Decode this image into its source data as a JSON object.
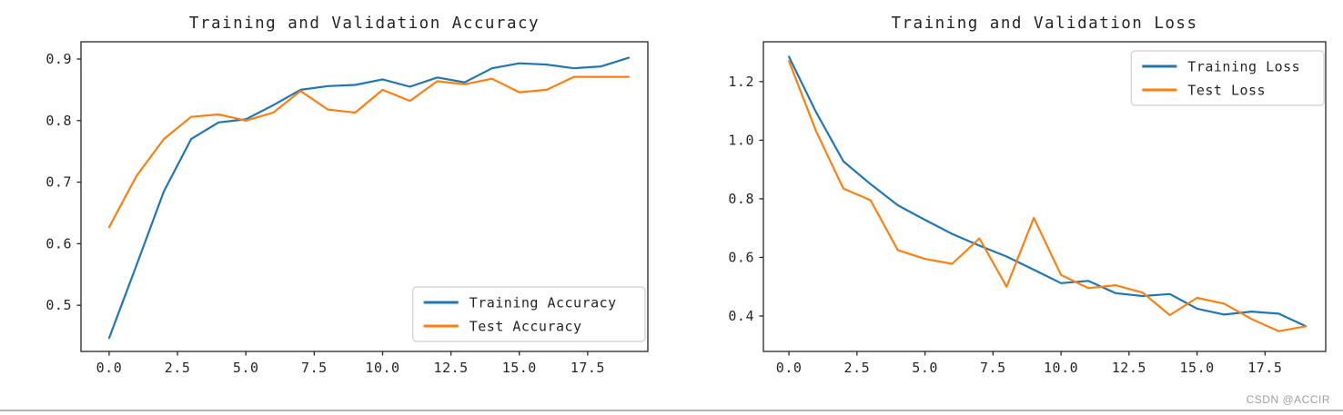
{
  "page": {
    "watermark": "CSDN @ACCIR"
  },
  "chart_data": [
    {
      "type": "line",
      "title": "Training and Validation Accuracy",
      "xlabel": "",
      "ylabel": "",
      "grid": false,
      "x": [
        0,
        1,
        2,
        3,
        4,
        5,
        6,
        7,
        8,
        9,
        10,
        11,
        12,
        13,
        14,
        15,
        16,
        17,
        18,
        19
      ],
      "series": [
        {
          "name": "Training Accuracy",
          "color": "#1f77b4",
          "values": [
            0.447,
            0.565,
            0.685,
            0.77,
            0.797,
            0.802,
            0.825,
            0.85,
            0.856,
            0.858,
            0.867,
            0.855,
            0.87,
            0.862,
            0.885,
            0.893,
            0.891,
            0.885,
            0.888,
            0.902
          ]
        },
        {
          "name": "Test Accuracy",
          "color": "#ff7f0e",
          "values": [
            0.627,
            0.71,
            0.77,
            0.806,
            0.81,
            0.8,
            0.813,
            0.848,
            0.818,
            0.813,
            0.85,
            0.832,
            0.864,
            0.859,
            0.868,
            0.846,
            0.85,
            0.871,
            0.871,
            0.871
          ]
        }
      ],
      "xlim": [
        -1.03,
        19.7
      ],
      "ylim": [
        0.425,
        0.928
      ],
      "xtick_values": [
        0,
        2.5,
        5,
        7.5,
        10,
        12.5,
        15,
        17.5
      ],
      "xtick_labels": [
        "0.0",
        "2.5",
        "5.0",
        "7.5",
        "10.0",
        "12.5",
        "15.0",
        "17.5"
      ],
      "ytick_values": [
        0.5,
        0.6,
        0.7,
        0.8,
        0.9
      ],
      "ytick_labels": [
        "0.5",
        "0.6",
        "0.7",
        "0.8",
        "0.9"
      ],
      "legend": {
        "position": "lower right",
        "entries": [
          "Training Accuracy",
          "Test Accuracy"
        ]
      }
    },
    {
      "type": "line",
      "title": "Training and Validation Loss",
      "xlabel": "",
      "ylabel": "",
      "grid": false,
      "x": [
        0,
        1,
        2,
        3,
        4,
        5,
        6,
        7,
        8,
        9,
        10,
        11,
        12,
        13,
        14,
        15,
        16,
        17,
        18,
        19
      ],
      "series": [
        {
          "name": "Training Loss",
          "color": "#1f77b4",
          "values": [
            1.285,
            1.095,
            0.928,
            0.85,
            0.778,
            0.728,
            0.68,
            0.64,
            0.603,
            0.558,
            0.512,
            0.52,
            0.478,
            0.468,
            0.475,
            0.425,
            0.405,
            0.415,
            0.408,
            0.365
          ]
        },
        {
          "name": "Test Loss",
          "color": "#ff7f0e",
          "values": [
            1.27,
            1.03,
            0.835,
            0.795,
            0.625,
            0.595,
            0.578,
            0.665,
            0.5,
            0.735,
            0.54,
            0.495,
            0.505,
            0.48,
            0.403,
            0.462,
            0.442,
            0.39,
            0.348,
            0.365
          ]
        }
      ],
      "xlim": [
        -0.94,
        19.73
      ],
      "ylim": [
        0.279,
        1.336
      ],
      "xtick_values": [
        0,
        2.5,
        5,
        7.5,
        10,
        12.5,
        15,
        17.5
      ],
      "xtick_labels": [
        "0.0",
        "2.5",
        "5.0",
        "7.5",
        "10.0",
        "12.5",
        "15.0",
        "17.5"
      ],
      "ytick_values": [
        0.4,
        0.6,
        0.8,
        1.0,
        1.2
      ],
      "ytick_labels": [
        "0.4",
        "0.6",
        "0.8",
        "1.0",
        "1.2"
      ],
      "legend": {
        "position": "upper right",
        "entries": [
          "Training Loss",
          "Test Loss"
        ]
      }
    }
  ],
  "style": {
    "line_blue": "#1f77b4",
    "line_orange": "#ff7f0e",
    "frame_color": "#262626",
    "text_color": "#262626",
    "legend_border": "#cfcfcf",
    "watermark_color": "#9e9e9e",
    "divider_color": "#b3b3b8"
  }
}
